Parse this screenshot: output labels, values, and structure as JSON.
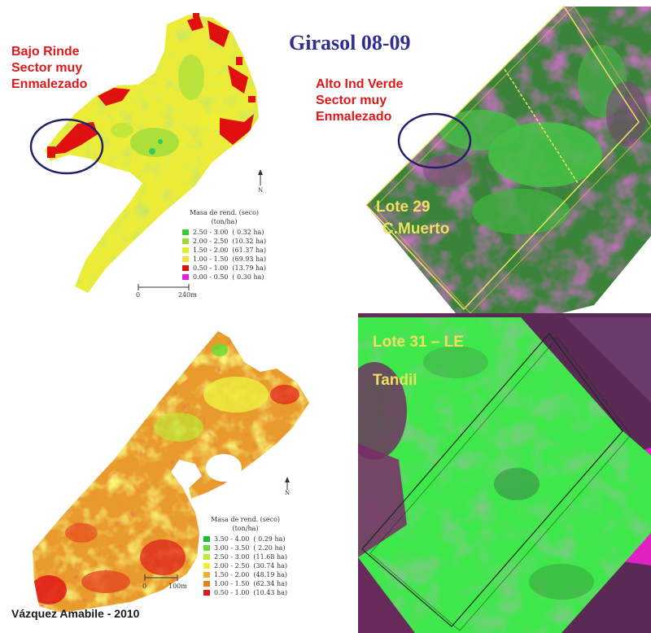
{
  "title": "Girasol  08-09",
  "top_left_map": {
    "annotation_lines": [
      "Bajo Rinde",
      "Sector muy",
      "Enmalezado"
    ],
    "legend_title": "Masa de rend. (seco)",
    "legend_unit": "(ton/ha)",
    "legend_items": [
      {
        "range": "2.50 - 3.00",
        "area": "( 0.32 ha)",
        "color": "#33cc33"
      },
      {
        "range": "2.00 - 2.50",
        "area": "(10.32 ha)",
        "color": "#99dd33"
      },
      {
        "range": "1.50 - 2.00",
        "area": "(61.37 ha)",
        "color": "#ddee33"
      },
      {
        "range": "1.00 - 1.50",
        "area": "(69.93 ha)",
        "color": "#f0e040"
      },
      {
        "range": "0.50 - 1.00",
        "area": "(13.79 ha)",
        "color": "#e01010"
      },
      {
        "range": "0.00 - 0.50",
        "area": "( 0.30 ha)",
        "color": "#dd22dd"
      }
    ],
    "scale_start": "0",
    "scale_end": "240m",
    "north": "N"
  },
  "top_right_map": {
    "annotation_lines": [
      "Alto Ind Verde",
      "Sector muy",
      "Enmalezado"
    ],
    "lot_label": "Lote 29",
    "location_label": "C.Muerto"
  },
  "bottom_left_map": {
    "legend_title": "Masa de rend. (seco)",
    "legend_unit": "(ton/ha)",
    "legend_items": [
      {
        "range": "3.50 - 4.00",
        "area": "( 0.29 ha)",
        "color": "#22bb33"
      },
      {
        "range": "3.00 - 3.50",
        "area": "( 2.20 ha)",
        "color": "#66dd33"
      },
      {
        "range": "2.50 - 3.00",
        "area": "(11.68 ha)",
        "color": "#bbee33"
      },
      {
        "range": "2.00 - 2.50",
        "area": "(30.74 ha)",
        "color": "#eef040"
      },
      {
        "range": "1.50 - 2.00",
        "area": "(48.19 ha)",
        "color": "#f0b030"
      },
      {
        "range": "1.00 - 1.50",
        "area": "(62.34 ha)",
        "color": "#e88020"
      },
      {
        "range": "0.50 - 1.00",
        "area": "(10.43 ha)",
        "color": "#e01818"
      }
    ],
    "scale_start": "0",
    "scale_end": "100m",
    "north": "N"
  },
  "bottom_right_map": {
    "lot_label": "Lote 31 – LE",
    "location_label": "Tandil"
  },
  "author": "Vázquez Amabile - 2010"
}
